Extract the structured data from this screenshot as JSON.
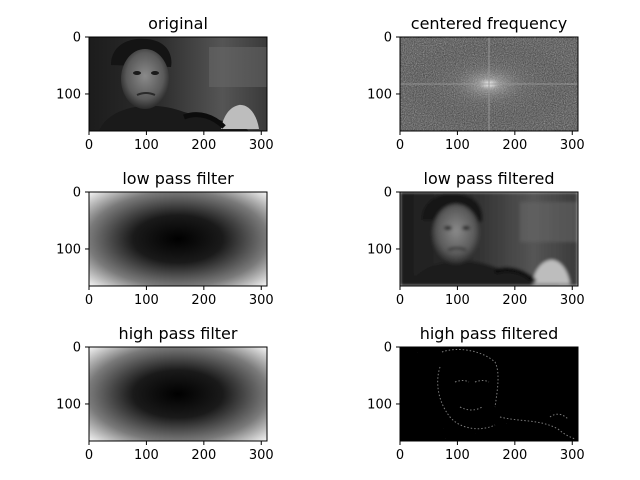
{
  "colors": {
    "background": "#ffffff",
    "axis": "#000000"
  },
  "chart_data": [
    {
      "type": "heatmap",
      "title": "original",
      "xticks": [
        "0",
        "100",
        "200",
        "300"
      ],
      "yticks": [
        "0",
        "100"
      ],
      "xlim": [
        0,
        310
      ],
      "ylim": [
        165,
        0
      ],
      "image": "grayscale-photo-portrait"
    },
    {
      "type": "heatmap",
      "title": "centered frequency",
      "xticks": [
        "0",
        "100",
        "200",
        "300"
      ],
      "yticks": [
        "0",
        "100"
      ],
      "xlim": [
        0,
        310
      ],
      "ylim": [
        165,
        0
      ],
      "image": "fft-magnitude-spectrum"
    },
    {
      "type": "heatmap",
      "title": "low pass filter",
      "xticks": [
        "0",
        "100",
        "200",
        "300"
      ],
      "yticks": [
        "0",
        "100"
      ],
      "xlim": [
        0,
        310
      ],
      "ylim": [
        165,
        0
      ],
      "image": "radial-gradient-dark-center"
    },
    {
      "type": "heatmap",
      "title": "low pass filtered",
      "xticks": [
        "0",
        "100",
        "200",
        "300"
      ],
      "yticks": [
        "0",
        "100"
      ],
      "xlim": [
        0,
        310
      ],
      "ylim": [
        165,
        0
      ],
      "image": "grayscale-photo-portrait-filtered"
    },
    {
      "type": "heatmap",
      "title": "high pass filter",
      "xticks": [
        "0",
        "100",
        "200",
        "300"
      ],
      "yticks": [
        "0",
        "100"
      ],
      "xlim": [
        0,
        310
      ],
      "ylim": [
        165,
        0
      ],
      "image": "radial-gradient-dark-center"
    },
    {
      "type": "heatmap",
      "title": "high pass filtered",
      "xticks": [
        "0",
        "100",
        "200",
        "300"
      ],
      "yticks": [
        "0",
        "100"
      ],
      "xlim": [
        0,
        310
      ],
      "ylim": [
        165,
        0
      ],
      "image": "edge-map-dark"
    }
  ]
}
